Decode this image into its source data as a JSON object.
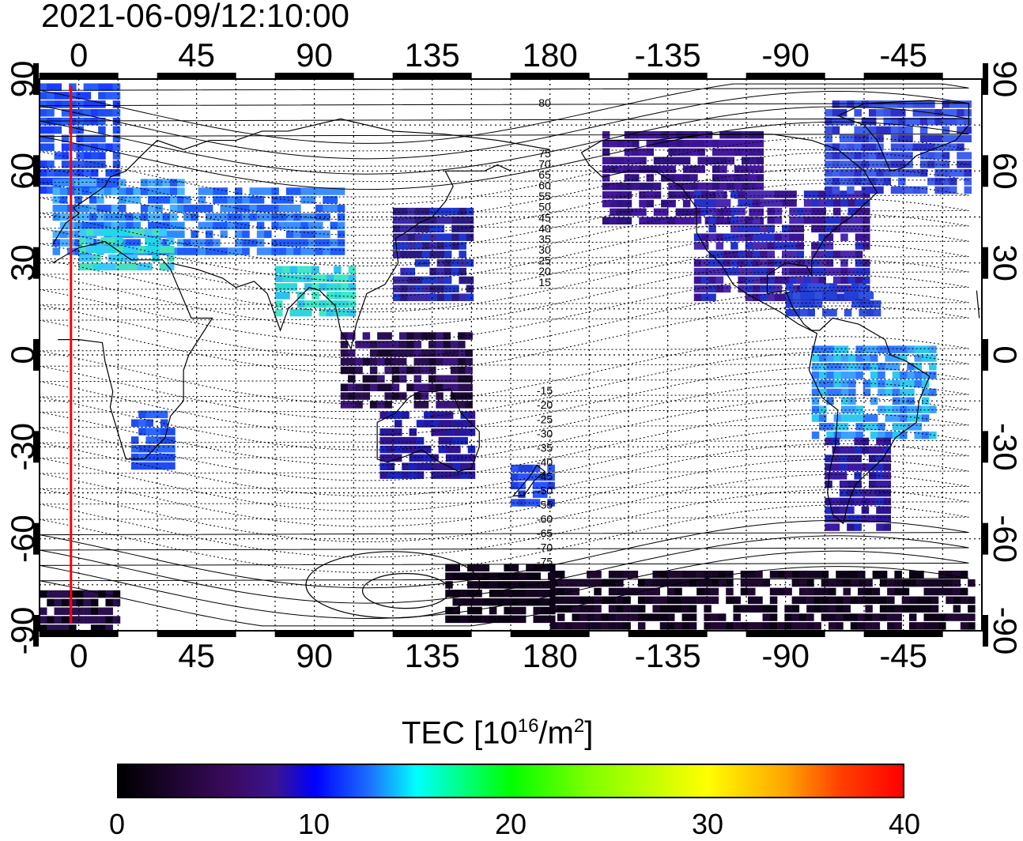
{
  "title": "2021-06-09/12:10:00",
  "map": {
    "top_lon_labels": [
      "0",
      "45",
      "90",
      "135",
      "180",
      "-135",
      "-90",
      "-45"
    ],
    "bottom_lon_labels": [
      "0",
      "45",
      "90",
      "135",
      "180",
      "-135",
      "-90",
      "-45"
    ],
    "left_lat_labels": [
      "90",
      "60",
      "30",
      "0",
      "-30",
      "-60",
      "-90"
    ],
    "right_lat_labels": [
      "90",
      "60",
      "30",
      "0",
      "-30",
      "-60",
      "-90"
    ],
    "contour_labels_north": [
      "80",
      "75",
      "70",
      "65",
      "60",
      "55",
      "50",
      "45",
      "40",
      "35",
      "30",
      "25",
      "20",
      "15"
    ],
    "contour_labels_south": [
      "-15",
      "-20",
      "-25",
      "-30",
      "-35",
      "-40",
      "-45",
      "-50",
      "-55",
      "-60",
      "-65",
      "-70",
      "-75"
    ],
    "marker_longitude": -3,
    "marker_color": "#ff0000",
    "projection_center_longitude": 0
  },
  "colorbar": {
    "title_prefix": "TEC  [10",
    "title_sup1": "16",
    "title_mid": "/m",
    "title_sup2": "2",
    "title_suffix": "]",
    "min": 0,
    "max": 40,
    "tick_labels": [
      "0",
      "10",
      "20",
      "30",
      "40"
    ],
    "colors": [
      "#000000",
      "#3a0a5e",
      "#0000ff",
      "#00ffff",
      "#00ff00",
      "#ffff00",
      "#ff0000"
    ]
  }
}
